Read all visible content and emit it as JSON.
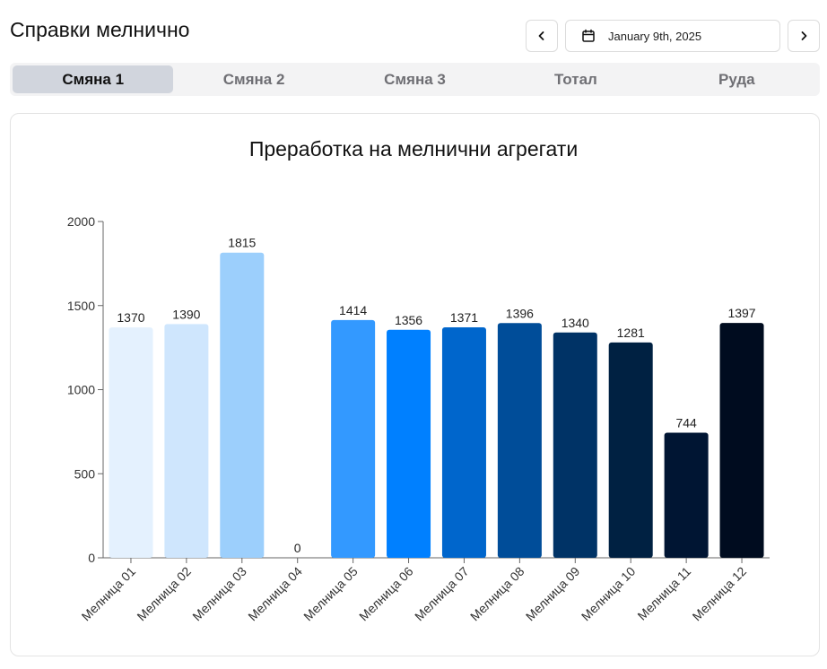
{
  "header": {
    "title": "Справки мелнично"
  },
  "date_picker": {
    "prev_icon": "chevron-left-icon",
    "calendar_icon": "calendar-icon",
    "date_label": "January 9th, 2025",
    "next_icon": "chevron-right-icon"
  },
  "tabs": [
    {
      "label": "Смяна 1",
      "active": true
    },
    {
      "label": "Смяна 2",
      "active": false
    },
    {
      "label": "Смяна 3",
      "active": false
    },
    {
      "label": "Тотал",
      "active": false
    },
    {
      "label": "Руда",
      "active": false
    }
  ],
  "chart_data": {
    "type": "bar",
    "title": "Преработка на мелнични агрегати",
    "xlabel": "",
    "ylabel": "",
    "ylim": [
      0,
      2000
    ],
    "yticks": [
      "0",
      "500",
      "1000",
      "1500",
      "2000"
    ],
    "categories": [
      "Мелница 01",
      "Мелница 02",
      "Мелница 03",
      "Мелница 04",
      "Мелница 05",
      "Мелница 06",
      "Мелница 07",
      "Мелница 08",
      "Мелница 09",
      "Мелница 10",
      "Мелница 11",
      "Мелница 12"
    ],
    "values": [
      1370,
      1390,
      1815,
      0,
      1414,
      1356,
      1371,
      1396,
      1340,
      1281,
      744,
      1397
    ],
    "colors": [
      "#e4f1fe",
      "#cfe6fd",
      "#9ccffc",
      "#74b9fb",
      "#3399ff",
      "#0080ff",
      "#0066cc",
      "#004d99",
      "#003366",
      "#002142",
      "#001533",
      "#000c1f"
    ],
    "grid": false,
    "legend": "none"
  }
}
